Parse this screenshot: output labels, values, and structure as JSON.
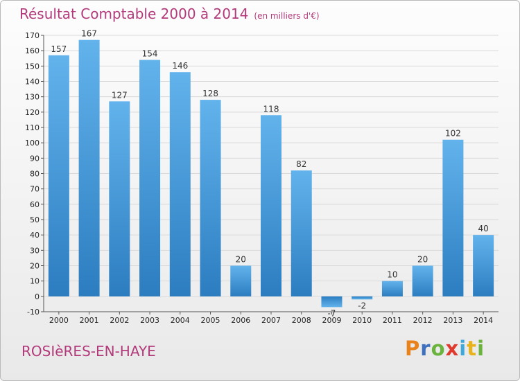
{
  "title": "Résultat Comptable 2000 à 2014",
  "subtitle": "(en milliers d'€)",
  "commune": "ROSIèRES-EN-HAYE",
  "brand": {
    "letters": [
      "P",
      "r",
      "o",
      "x",
      "i",
      "t",
      "i"
    ],
    "colors": [
      "#e8821d",
      "#3f6fbf",
      "#6ab33d",
      "#e03a2e",
      "#3fa8d8",
      "#e8b21d",
      "#6ab33d"
    ]
  },
  "colors": {
    "title": "#b23a7a",
    "bar": "#3b8fd4",
    "bar_light": "#62b3ec",
    "grid": "#d9d9d9"
  },
  "chart_data": {
    "type": "bar",
    "title": "Résultat Comptable 2000 à 2014",
    "subtitle": "(en milliers d'€)",
    "categories": [
      "2000",
      "2001",
      "2002",
      "2003",
      "2004",
      "2005",
      "2006",
      "2007",
      "2008",
      "2009",
      "2010",
      "2011",
      "2012",
      "2013",
      "2014"
    ],
    "values": [
      157,
      167,
      127,
      154,
      146,
      128,
      20,
      118,
      82,
      -7,
      -2,
      10,
      20,
      102,
      40
    ],
    "value_labels": [
      "157",
      "167",
      "127",
      "154",
      "146",
      "128",
      "20",
      "118",
      "82",
      "-7",
      "-2",
      "10",
      "20",
      "102",
      "40"
    ],
    "yticks": [
      "-10",
      "0",
      "10",
      "20",
      "30",
      "40",
      "50",
      "60",
      "70",
      "80",
      "90",
      "100",
      "110",
      "120",
      "130",
      "140",
      "150",
      "160",
      "170"
    ],
    "ylim": [
      -10,
      170
    ],
    "grid": true,
    "xlabel": "",
    "ylabel": ""
  }
}
